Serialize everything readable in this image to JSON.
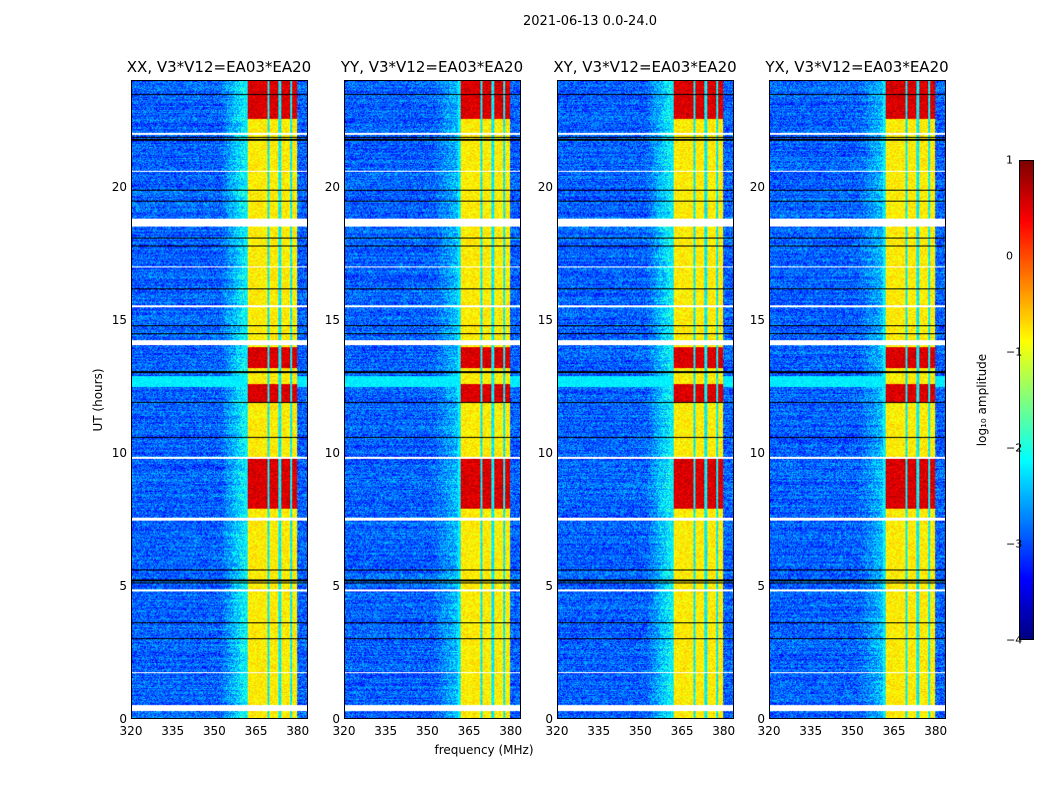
{
  "chart_data": {
    "type": "heatmap",
    "title": "2021-06-13 0.0-24.0",
    "xlabel": "frequency (MHz)",
    "ylabel": "UT (hours)",
    "xlim": [
      320,
      383.7
    ],
    "ylim": [
      0,
      24
    ],
    "xticks": [
      "320",
      "335",
      "350",
      "365",
      "380"
    ],
    "xtick_values": [
      320,
      335,
      350,
      365,
      380
    ],
    "yticks": [
      "0",
      "5",
      "10",
      "15",
      "20"
    ],
    "ytick_values": [
      0,
      5,
      10,
      15,
      20
    ],
    "panels": [
      {
        "title": "XX, V3*V12=EA03*EA20",
        "seed": 1
      },
      {
        "title": "YY, V3*V12=EA03*EA20",
        "seed": 2
      },
      {
        "title": "XY, V3*V12=EA03*EA20",
        "seed": 3
      },
      {
        "title": "YX, V3*V12=EA03*EA20",
        "seed": 4
      }
    ],
    "features": {
      "background_log_amp": -2.9,
      "band_MHz": [
        361,
        380
      ],
      "band_log_amp": -0.8,
      "band_notches_MHz": [
        361.3,
        369.5,
        373.6,
        377.8
      ],
      "strong_hours": [
        [
          22.6,
          24
        ],
        [
          7.9,
          9.8
        ],
        [
          11.9,
          12.6
        ],
        [
          13.2,
          14
        ]
      ],
      "flagged_hours": [
        [
          0.3,
          0.5
        ],
        [
          14.05,
          14.25
        ],
        [
          18.55,
          18.85
        ],
        [
          7.45,
          7.55
        ],
        [
          9.8,
          9.85
        ],
        [
          4.8,
          4.85
        ],
        [
          17.0,
          17.05
        ],
        [
          20.6,
          20.65
        ],
        [
          22.0,
          22.05
        ],
        [
          15.5,
          15.55
        ],
        [
          1.7,
          1.75
        ]
      ],
      "black_line_hours": [
        5.1,
        5.2,
        5.6,
        3.6,
        3.0,
        14.5,
        14.8,
        16.2,
        17.8,
        18.1,
        19.5,
        19.9,
        21.8,
        21.9,
        11.9,
        10.6,
        13.05,
        23.5
      ]
    },
    "colorbar": {
      "label": "log₁₀ amplitude",
      "range": [
        -4,
        1
      ],
      "ticks": [
        "1",
        "0",
        "−1",
        "−2",
        "−3",
        "−4"
      ],
      "tick_values": [
        1,
        0,
        -1,
        -2,
        -3,
        -4
      ],
      "colormap": "jet"
    }
  }
}
